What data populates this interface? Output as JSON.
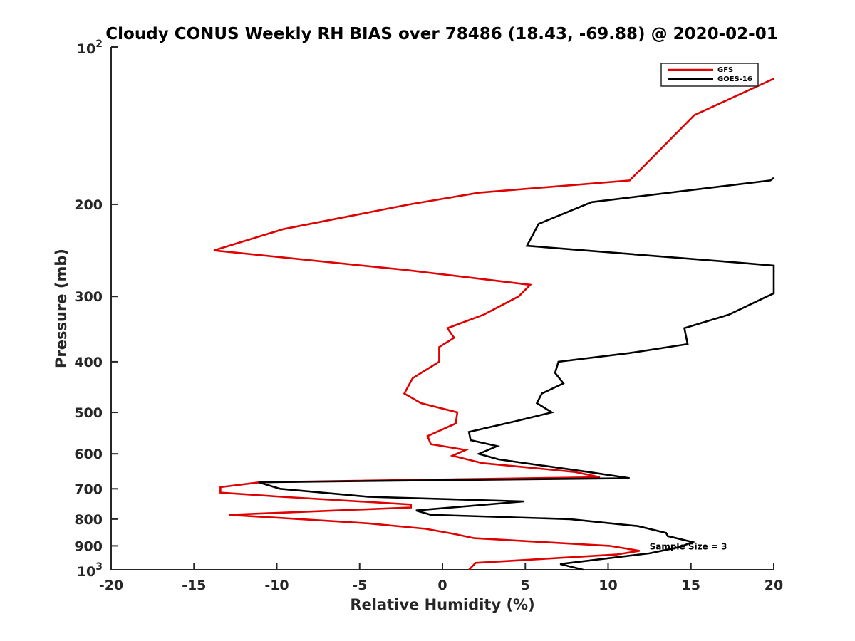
{
  "chart_data": {
    "type": "line",
    "title": "Cloudy CONUS Weekly RH BIAS over 78486 (18.43, -69.88) @ 2020-02-01",
    "xlabel": "Relative Humidity (%)",
    "ylabel": "Pressure (mb)",
    "xlim": [
      -20,
      20
    ],
    "ylim": [
      100,
      1000
    ],
    "y_scale": "log",
    "y_reversed": true,
    "grid": false,
    "legend_position": "top-right",
    "x_ticks": [
      -20,
      -15,
      -10,
      -5,
      0,
      5,
      10,
      15,
      20
    ],
    "x_tick_labels": [
      "-20",
      "-15",
      "-10",
      "-5",
      "0",
      "5",
      "10",
      "15",
      "20"
    ],
    "y_ticks": [
      200,
      300,
      400,
      500,
      600,
      700,
      800,
      900
    ],
    "y_tick_labels": [
      "200",
      "300",
      "400",
      "500",
      "600",
      "700",
      "800",
      "900"
    ],
    "y_decade_labels": [
      {
        "value": 100,
        "base": "10",
        "exp": "2"
      },
      {
        "value": 1000,
        "base": "10",
        "exp": "3"
      }
    ],
    "annotation": {
      "text": "Sample Size = 3",
      "x": 12.5,
      "y": 900
    },
    "series": [
      {
        "name": "GFS",
        "color": "#e00000",
        "points": [
          [
            20.0,
            115
          ],
          [
            15.2,
            135
          ],
          [
            11.3,
            180
          ],
          [
            2.2,
            190
          ],
          [
            -2.0,
            200
          ],
          [
            -9.6,
            223
          ],
          [
            -13.8,
            245
          ],
          [
            -2.2,
            267
          ],
          [
            5.3,
            285
          ],
          [
            4.6,
            300
          ],
          [
            2.5,
            325
          ],
          [
            0.3,
            345
          ],
          [
            0.7,
            360
          ],
          [
            -0.2,
            375
          ],
          [
            -0.2,
            400
          ],
          [
            -1.8,
            430
          ],
          [
            -2.3,
            460
          ],
          [
            -1.3,
            480
          ],
          [
            0.9,
            500
          ],
          [
            0.8,
            525
          ],
          [
            -0.9,
            555
          ],
          [
            -0.7,
            575
          ],
          [
            1.4,
            590
          ],
          [
            0.6,
            605
          ],
          [
            2.4,
            625
          ],
          [
            8.0,
            650
          ],
          [
            9.5,
            665
          ],
          [
            -11.0,
            680
          ],
          [
            -13.4,
            695
          ],
          [
            -13.4,
            712
          ],
          [
            -9.7,
            725
          ],
          [
            -1.9,
            750
          ],
          [
            -1.9,
            760
          ],
          [
            -12.9,
            785
          ],
          [
            -4.5,
            815
          ],
          [
            -1.0,
            835
          ],
          [
            0.8,
            855
          ],
          [
            1.9,
            870
          ],
          [
            10.1,
            900
          ],
          [
            11.9,
            920
          ],
          [
            10.5,
            935
          ],
          [
            2.0,
            970
          ],
          [
            1.6,
            1000
          ]
        ]
      },
      {
        "name": "GOES-16",
        "color": "#000000",
        "points": [
          [
            20.0,
            178
          ],
          [
            19.8,
            180
          ],
          [
            9.0,
            198
          ],
          [
            5.8,
            218
          ],
          [
            5.1,
            240
          ],
          [
            17.5,
            258
          ],
          [
            20.0,
            262
          ],
          [
            20.0,
            296
          ],
          [
            19.6,
            300
          ],
          [
            17.3,
            325
          ],
          [
            14.6,
            345
          ],
          [
            14.8,
            370
          ],
          [
            11.3,
            385
          ],
          [
            7.0,
            400
          ],
          [
            6.8,
            420
          ],
          [
            7.3,
            440
          ],
          [
            6.0,
            460
          ],
          [
            5.7,
            480
          ],
          [
            6.6,
            500
          ],
          [
            4.4,
            520
          ],
          [
            1.6,
            545
          ],
          [
            1.7,
            565
          ],
          [
            3.3,
            580
          ],
          [
            2.2,
            600
          ],
          [
            3.4,
            615
          ],
          [
            8.8,
            650
          ],
          [
            11.3,
            668
          ],
          [
            -11.1,
            680
          ],
          [
            -9.8,
            700
          ],
          [
            -4.5,
            725
          ],
          [
            4.9,
            740
          ],
          [
            -1.6,
            770
          ],
          [
            -0.7,
            785
          ],
          [
            7.7,
            800
          ],
          [
            11.8,
            825
          ],
          [
            13.5,
            850
          ],
          [
            13.6,
            862
          ],
          [
            15.1,
            885
          ],
          [
            14.3,
            905
          ],
          [
            12.5,
            930
          ],
          [
            7.1,
            975
          ],
          [
            8.5,
            1000
          ]
        ]
      }
    ]
  }
}
